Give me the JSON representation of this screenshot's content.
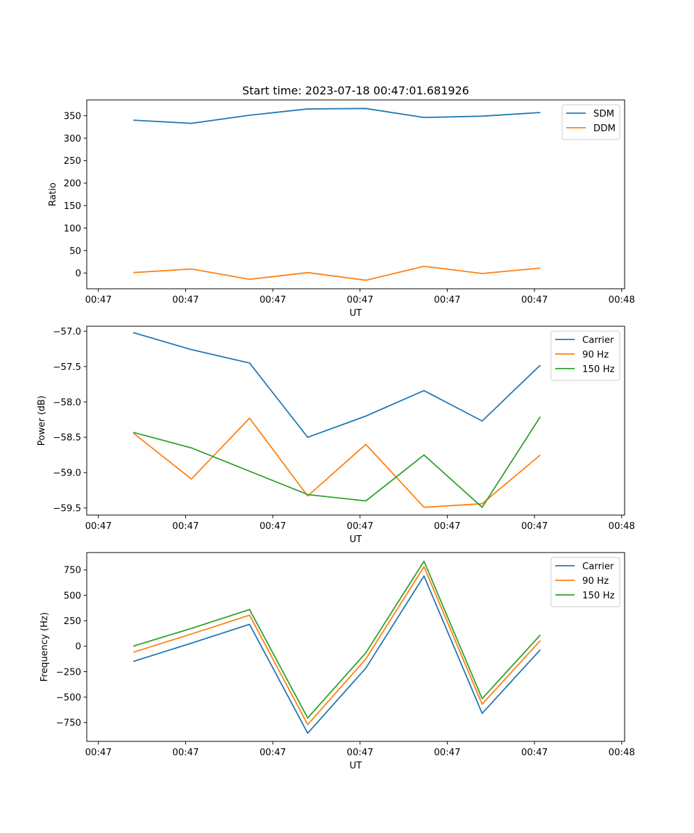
{
  "figure": {
    "title": "Start time: 2023-07-18 00:47:01.681926"
  },
  "colors": {
    "blue": "#1f77b4",
    "orange": "#ff7f0e",
    "green": "#2ca02c"
  },
  "chart_data": [
    {
      "type": "line",
      "title": "Start time: 2023-07-18 00:47:01.681926",
      "xlabel": "UT",
      "ylabel": "Ratio",
      "x": [
        1,
        2,
        3,
        4,
        5,
        6,
        7,
        8
      ],
      "xlim": [
        0.2,
        9.45
      ],
      "xticks": [
        0.4,
        1.9,
        3.4,
        4.9,
        6.4,
        7.9,
        9.4
      ],
      "xtick_labels": [
        "00:47",
        "00:47",
        "00:47",
        "00:47",
        "00:47",
        "00:47",
        "00:48"
      ],
      "ylim": [
        -35,
        385
      ],
      "yticks": [
        0,
        50,
        100,
        150,
        200,
        250,
        300,
        350
      ],
      "ytick_labels": [
        "0",
        "50",
        "100",
        "150",
        "200",
        "250",
        "300",
        "350"
      ],
      "legend_position": "top-right",
      "series": [
        {
          "name": "SDM",
          "color": "#1f77b4",
          "values": [
            340,
            333,
            351,
            365,
            366,
            346,
            349,
            357
          ]
        },
        {
          "name": "DDM",
          "color": "#ff7f0e",
          "values": [
            1,
            9,
            -14,
            1,
            -16,
            15,
            -1,
            11
          ]
        }
      ]
    },
    {
      "type": "line",
      "xlabel": "UT",
      "ylabel": "Power (dB)",
      "x": [
        1,
        2,
        3,
        4,
        5,
        6,
        7,
        8
      ],
      "xlim": [
        0.2,
        9.45
      ],
      "xticks": [
        0.4,
        1.9,
        3.4,
        4.9,
        6.4,
        7.9,
        9.4
      ],
      "xtick_labels": [
        "00:47",
        "00:47",
        "00:47",
        "00:47",
        "00:47",
        "00:47",
        "00:48"
      ],
      "ylim": [
        -59.6,
        -56.93
      ],
      "yticks": [
        -59.5,
        -59.0,
        -58.5,
        -58.0,
        -57.5,
        -57.0
      ],
      "ytick_labels": [
        "−59.5",
        "−59.0",
        "−58.5",
        "−58.0",
        "−57.5",
        "−57.0"
      ],
      "legend_position": "top-right",
      "series": [
        {
          "name": "Carrier",
          "color": "#1f77b4",
          "values": [
            -57.02,
            -57.26,
            -57.45,
            -58.5,
            -58.2,
            -57.84,
            -58.27,
            -57.48
          ]
        },
        {
          "name": "90 Hz",
          "color": "#ff7f0e",
          "values": [
            -58.44,
            -59.09,
            -58.23,
            -59.33,
            -58.6,
            -59.49,
            -59.44,
            -58.75
          ]
        },
        {
          "name": "150 Hz",
          "color": "#2ca02c",
          "values": [
            -58.43,
            -58.65,
            -58.98,
            -59.31,
            -59.4,
            -58.75,
            -59.49,
            -58.21
          ]
        }
      ]
    },
    {
      "type": "line",
      "xlabel": "UT",
      "ylabel": "Frequency (Hz)",
      "x": [
        1,
        2,
        3,
        4,
        5,
        6,
        7,
        8
      ],
      "xlim": [
        0.2,
        9.45
      ],
      "xticks": [
        0.4,
        1.9,
        3.4,
        4.9,
        6.4,
        7.9,
        9.4
      ],
      "xtick_labels": [
        "00:47",
        "00:47",
        "00:47",
        "00:47",
        "00:47",
        "00:47",
        "00:48"
      ],
      "ylim": [
        -935,
        920
      ],
      "yticks": [
        -750,
        -500,
        -250,
        0,
        250,
        500,
        750
      ],
      "ytick_labels": [
        "−750",
        "−500",
        "−250",
        "0",
        "250",
        "500",
        "750"
      ],
      "legend_position": "top-right",
      "series": [
        {
          "name": "Carrier",
          "color": "#1f77b4",
          "values": [
            -150,
            30,
            215,
            -855,
            -215,
            690,
            -660,
            -35
          ]
        },
        {
          "name": "90 Hz",
          "color": "#ff7f0e",
          "values": [
            -60,
            120,
            305,
            -770,
            -125,
            780,
            -570,
            55
          ]
        },
        {
          "name": "150 Hz",
          "color": "#2ca02c",
          "values": [
            0,
            175,
            360,
            -705,
            -65,
            835,
            -515,
            110
          ]
        }
      ]
    }
  ]
}
